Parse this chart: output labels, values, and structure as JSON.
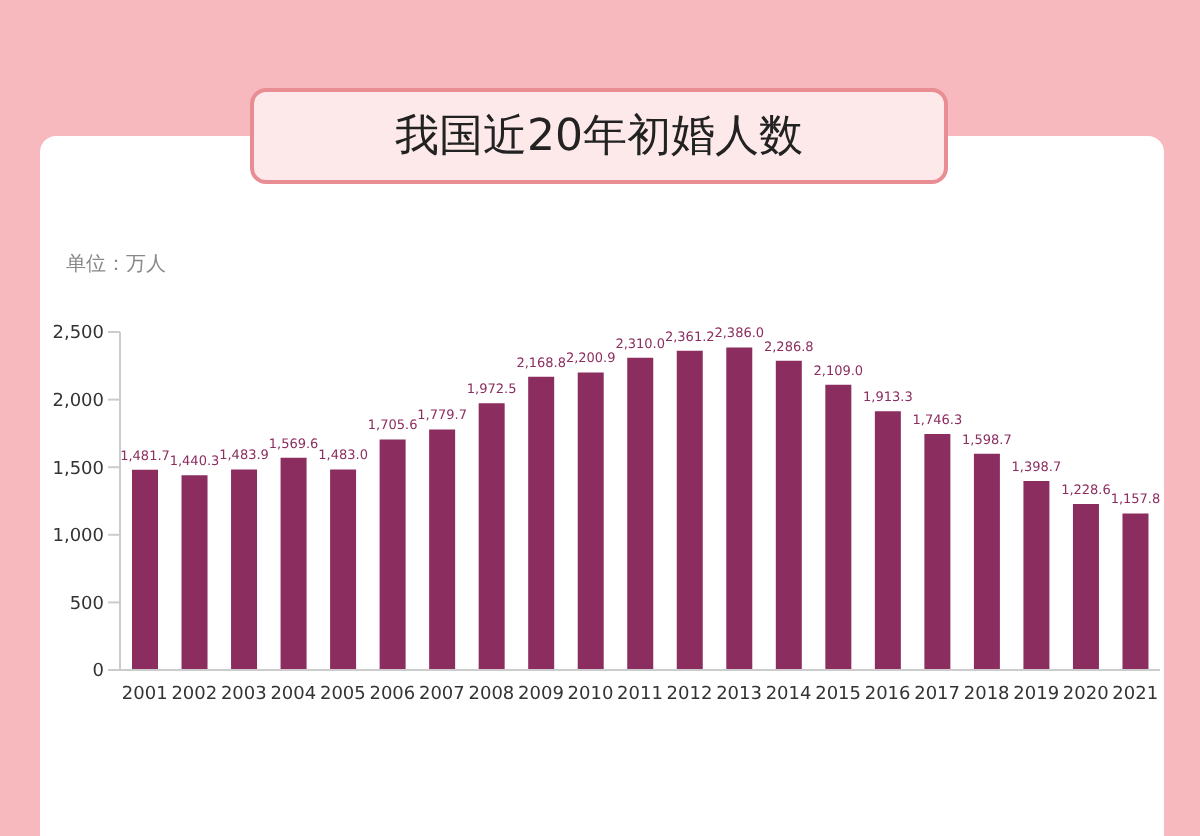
{
  "chart_data": {
    "type": "bar",
    "title": "我国近20年初婚人数",
    "ylabel": "单位：万人",
    "categories": [
      "2001",
      "2002",
      "2003",
      "2004",
      "2005",
      "2006",
      "2007",
      "2008",
      "2009",
      "2010",
      "2011",
      "2012",
      "2013",
      "2014",
      "2015",
      "2016",
      "2017",
      "2018",
      "2019",
      "2020",
      "2021"
    ],
    "values": [
      1481.7,
      1440.3,
      1483.9,
      1569.6,
      1483.0,
      1705.6,
      1779.7,
      1972.5,
      2168.8,
      2200.9,
      2310.0,
      2361.2,
      2386.0,
      2286.8,
      2109.0,
      1913.3,
      1746.3,
      1598.7,
      1398.7,
      1228.6,
      1157.8
    ],
    "value_labels": [
      "1,481.7",
      "1,440.3",
      "1,483.9",
      "1,569.6",
      "1,483.0",
      "1,705.6",
      "1,779.7",
      "1,972.5",
      "2,168.8",
      "2,200.9",
      "2,310.0",
      "2,361.2",
      "2,386.0",
      "2,286.8",
      "2,109.0",
      "1,913.3",
      "1,746.3",
      "1,598.7",
      "1,398.7",
      "1,228.6",
      "1,157.8"
    ],
    "color": "#8c2d5f",
    "ylim": [
      0,
      2500
    ],
    "yticks": [
      0,
      500,
      {
        "value": 1000,
        "label": "1,000"
      },
      {
        "value": 1500,
        "label": "1,500"
      },
      {
        "value": 2000,
        "label": "2,000"
      },
      {
        "value": 2500,
        "label": "2,500"
      }
    ],
    "grid": false
  }
}
